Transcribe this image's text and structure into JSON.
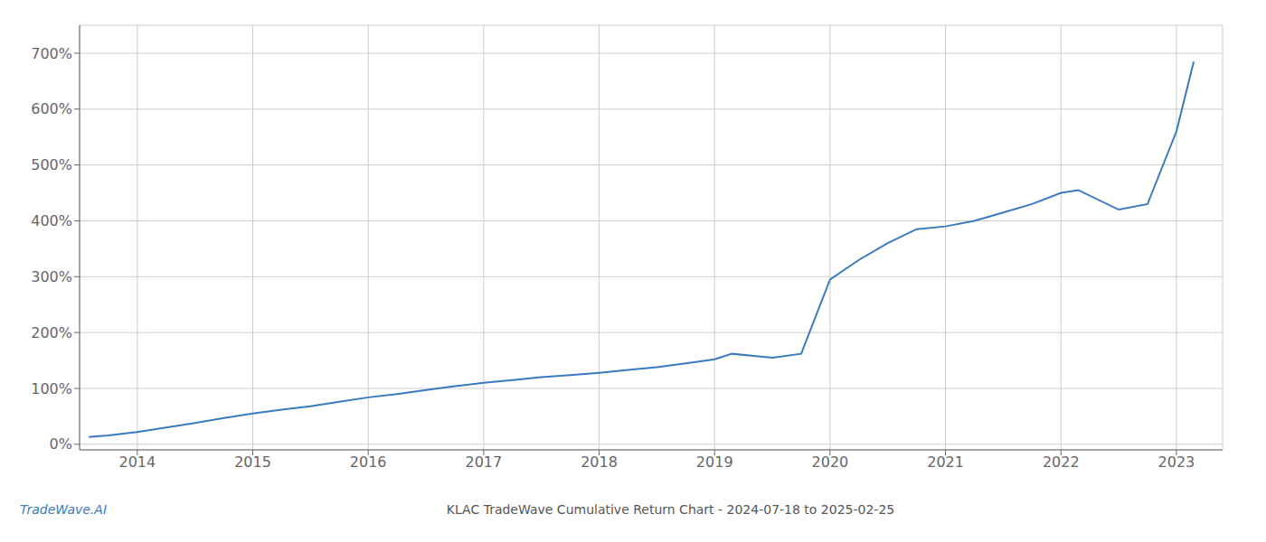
{
  "chart_data": {
    "type": "line",
    "title": "KLAC TradeWave Cumulative Return Chart - 2024-07-18 to 2025-02-25",
    "annotations": [
      "TradeWave.AI"
    ],
    "x": [
      2013.58,
      2013.75,
      2014.0,
      2014.25,
      2014.5,
      2014.75,
      2015.0,
      2015.25,
      2015.5,
      2015.75,
      2016.0,
      2016.25,
      2016.5,
      2016.75,
      2017.0,
      2017.25,
      2017.5,
      2017.75,
      2018.0,
      2018.25,
      2018.5,
      2018.75,
      2019.0,
      2019.15,
      2019.5,
      2019.75,
      2020.0,
      2020.25,
      2020.5,
      2020.75,
      2021.0,
      2021.25,
      2021.5,
      2021.75,
      2022.0,
      2022.15,
      2022.5,
      2022.75,
      2023.0,
      2023.15
    ],
    "values": [
      13,
      16,
      22,
      30,
      38,
      47,
      55,
      62,
      68,
      76,
      84,
      90,
      97,
      104,
      110,
      115,
      120,
      124,
      128,
      133,
      138,
      145,
      152,
      162,
      155,
      162,
      295,
      330,
      360,
      385,
      390,
      400,
      415,
      430,
      450,
      455,
      420,
      430,
      560,
      685
    ],
    "color": "#3a7abf",
    "xlim": [
      2013.5,
      2023.4
    ],
    "xticks": [
      2014,
      2015,
      2016,
      2017,
      2018,
      2019,
      2020,
      2021,
      2022,
      2023
    ],
    "ylim": [
      -10,
      750
    ],
    "yticks": [
      {
        "value": 0,
        "label": "0%"
      },
      {
        "value": 100,
        "label": "100%"
      },
      {
        "value": 200,
        "label": "200%"
      },
      {
        "value": 300,
        "label": "300%"
      },
      {
        "value": 400,
        "label": "400%"
      },
      {
        "value": 500,
        "label": "500%"
      },
      {
        "value": 600,
        "label": "600%"
      },
      {
        "value": 700,
        "label": "700%"
      }
    ],
    "grid": true
  }
}
